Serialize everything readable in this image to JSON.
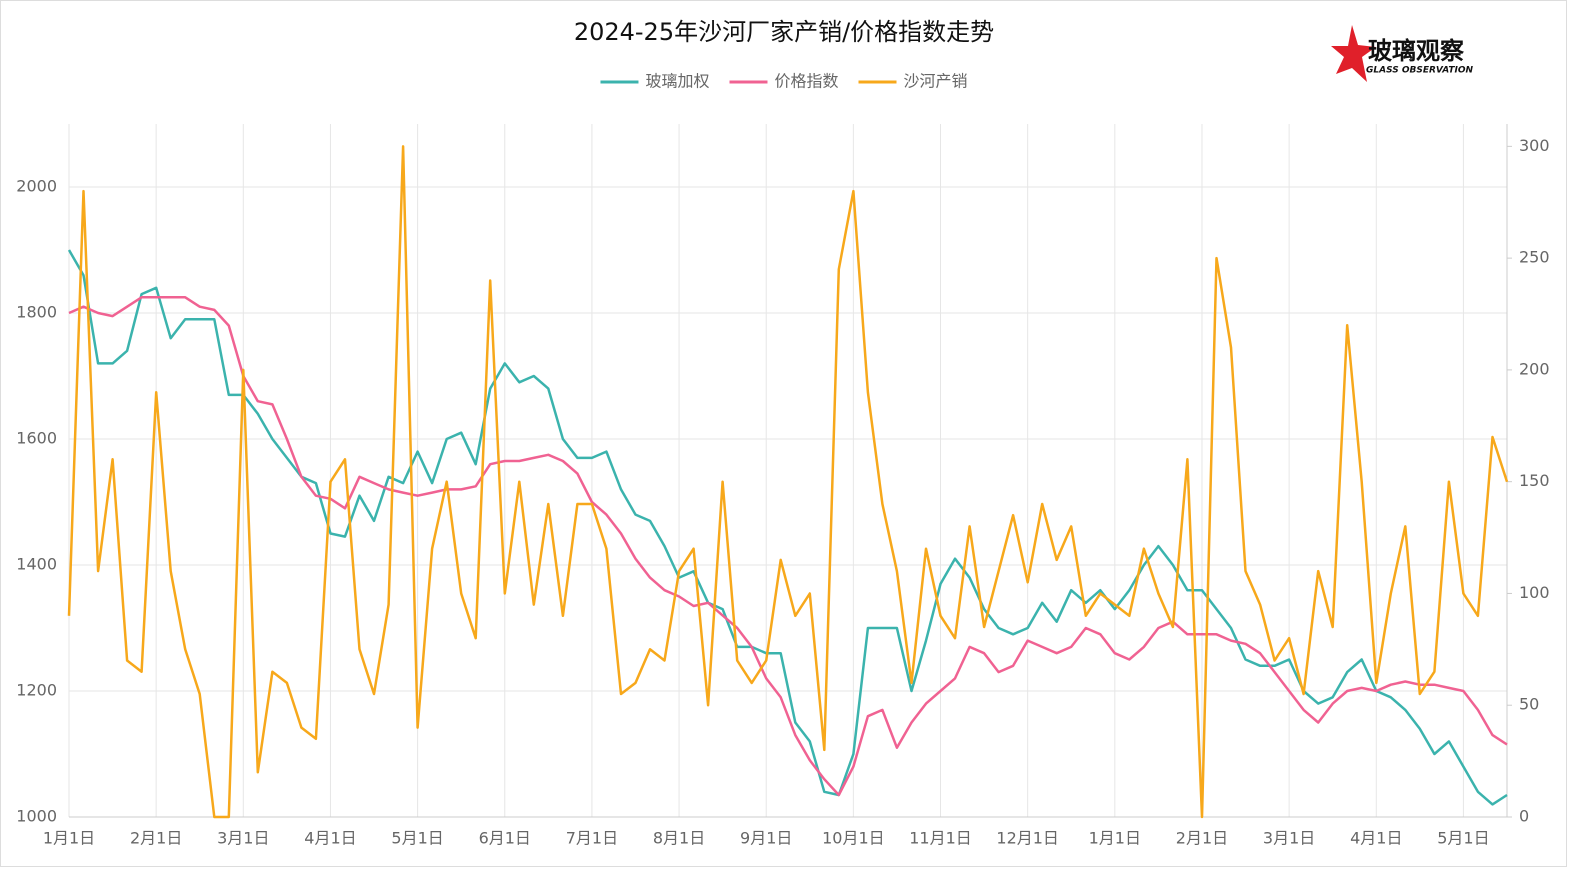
{
  "chart_data": {
    "type": "line",
    "title": "2024-25年沙河厂家产销/价格指数走势",
    "logo": {
      "text": "玻璃观察",
      "subtext": "GLASS OBSERVATION"
    },
    "categories": [
      "1月1日",
      null,
      null,
      null,
      null,
      null,
      "2月1日",
      null,
      null,
      null,
      null,
      null,
      "3月1日",
      null,
      null,
      null,
      null,
      null,
      "4月1日",
      null,
      null,
      null,
      null,
      null,
      "5月1日",
      null,
      null,
      null,
      null,
      null,
      "6月1日",
      null,
      null,
      null,
      null,
      null,
      "7月1日",
      null,
      null,
      null,
      null,
      null,
      "8月1日",
      null,
      null,
      null,
      null,
      null,
      "9月1日",
      null,
      null,
      null,
      null,
      null,
      "10月1日",
      null,
      null,
      null,
      null,
      null,
      "11月1日",
      null,
      null,
      null,
      null,
      null,
      "12月1日",
      null,
      null,
      null,
      null,
      null,
      "1月1日",
      null,
      null,
      null,
      null,
      null,
      "2月1日",
      null,
      null,
      null,
      null,
      null,
      "3月1日",
      null,
      null,
      null,
      null,
      null,
      "4月1日",
      null,
      null,
      null,
      null,
      null,
      "5月1日",
      null,
      null,
      null
    ],
    "series": [
      {
        "name": "玻璃加权",
        "color": "#3bb3ad",
        "values": [
          1900,
          1860,
          1720,
          1720,
          1740,
          1830,
          1840,
          1760,
          1790,
          1790,
          1790,
          1670,
          1670,
          1640,
          1600,
          1570,
          1540,
          1530,
          1450,
          1445,
          1510,
          1470,
          1540,
          1530,
          1580,
          1530,
          1600,
          1610,
          1560,
          1680,
          1720,
          1690,
          1700,
          1680,
          1600,
          1570,
          1570,
          1580,
          1520,
          1480,
          1470,
          1430,
          1380,
          1390,
          1340,
          1330,
          1270,
          1270,
          1260,
          1260,
          1150,
          1120,
          1040,
          1035,
          1100,
          1300,
          1300,
          1300,
          1200,
          1280,
          1370,
          1410,
          1380,
          1330,
          1300,
          1290,
          1300,
          1340,
          1310,
          1360,
          1340,
          1360,
          1330,
          1360,
          1400,
          1430,
          1400,
          1360,
          1360,
          1330,
          1300,
          1250,
          1240,
          1240,
          1250,
          1200,
          1180,
          1190,
          1230,
          1250,
          1200,
          1190,
          1170,
          1140,
          1100,
          1120,
          1080,
          1040,
          1020,
          1035
        ]
      },
      {
        "name": "价格指数",
        "color": "#f06292",
        "values": [
          1800,
          1810,
          1800,
          1795,
          1810,
          1825,
          1825,
          1825,
          1825,
          1810,
          1805,
          1780,
          1700,
          1660,
          1655,
          1600,
          1540,
          1510,
          1505,
          1490,
          1540,
          1530,
          1520,
          1515,
          1510,
          1515,
          1520,
          1520,
          1525,
          1560,
          1565,
          1565,
          1570,
          1575,
          1565,
          1545,
          1500,
          1480,
          1450,
          1410,
          1380,
          1360,
          1350,
          1335,
          1340,
          1320,
          1300,
          1270,
          1220,
          1190,
          1130,
          1090,
          1060,
          1035,
          1080,
          1160,
          1170,
          1110,
          1150,
          1180,
          1200,
          1220,
          1270,
          1260,
          1230,
          1240,
          1280,
          1270,
          1260,
          1270,
          1300,
          1290,
          1260,
          1250,
          1270,
          1300,
          1310,
          1290,
          1290,
          1290,
          1280,
          1275,
          1260,
          1230,
          1200,
          1170,
          1150,
          1180,
          1200,
          1205,
          1200,
          1210,
          1215,
          1210,
          1210,
          1205,
          1200,
          1170,
          1130,
          1115
        ]
      },
      {
        "name": "沙河产销",
        "color": "#f7a81b",
        "axis": "y2",
        "values": [
          90,
          280,
          110,
          160,
          70,
          65,
          190,
          110,
          75,
          55,
          0,
          0,
          200,
          20,
          65,
          60,
          40,
          35,
          150,
          160,
          75,
          55,
          95,
          300,
          40,
          120,
          150,
          100,
          80,
          240,
          100,
          150,
          95,
          140,
          90,
          140,
          140,
          120,
          55,
          60,
          75,
          70,
          110,
          120,
          50,
          150,
          70,
          60,
          70,
          115,
          90,
          100,
          30,
          245,
          280,
          190,
          140,
          110,
          60,
          120,
          90,
          80,
          130,
          85,
          110,
          135,
          105,
          140,
          115,
          130,
          90,
          100,
          95,
          90,
          120,
          100,
          85,
          160,
          0,
          250,
          210,
          110,
          95,
          70,
          80,
          55,
          110,
          85,
          220,
          150,
          60,
          100,
          130,
          55,
          65,
          150,
          100,
          90,
          170,
          150
        ]
      }
    ],
    "ylim": [
      1000,
      2100
    ],
    "yticks": [
      1000,
      1200,
      1400,
      1600,
      1800,
      2000
    ],
    "y2lim": [
      0,
      310
    ],
    "y2ticks": [
      0,
      50,
      100,
      150,
      200,
      250,
      300
    ],
    "grid": true
  }
}
